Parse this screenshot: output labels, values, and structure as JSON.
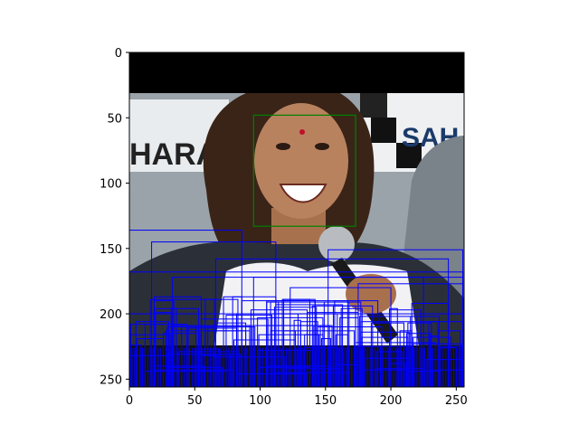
{
  "figure": {
    "x_ticks": [
      "0",
      "50",
      "100",
      "150",
      "200",
      "250"
    ],
    "y_ticks": [
      "0",
      "50",
      "100",
      "150",
      "200",
      "250"
    ],
    "x_tick_values": [
      0,
      50,
      100,
      150,
      200,
      250
    ],
    "y_tick_values": [
      0,
      50,
      100,
      150,
      200,
      250
    ],
    "extent": [
      256,
      256
    ],
    "colors": {
      "face_box": "#008000",
      "clutter_boxes": "#0000ff",
      "top_band": "#000000",
      "skin": "#b9825f",
      "hair": "#2d1c14",
      "jacket": "#2b3038",
      "shirt": "#f2f2f5",
      "bg_left": "#8c969e",
      "bg_right": "#d7dbdf"
    },
    "face_box": {
      "x0": 95,
      "y0": 48,
      "x1": 173,
      "y1": 133
    },
    "background_texts": [
      "HARA",
      "SAH"
    ],
    "image_description_icon": "photo-portrait-with-microphone"
  }
}
